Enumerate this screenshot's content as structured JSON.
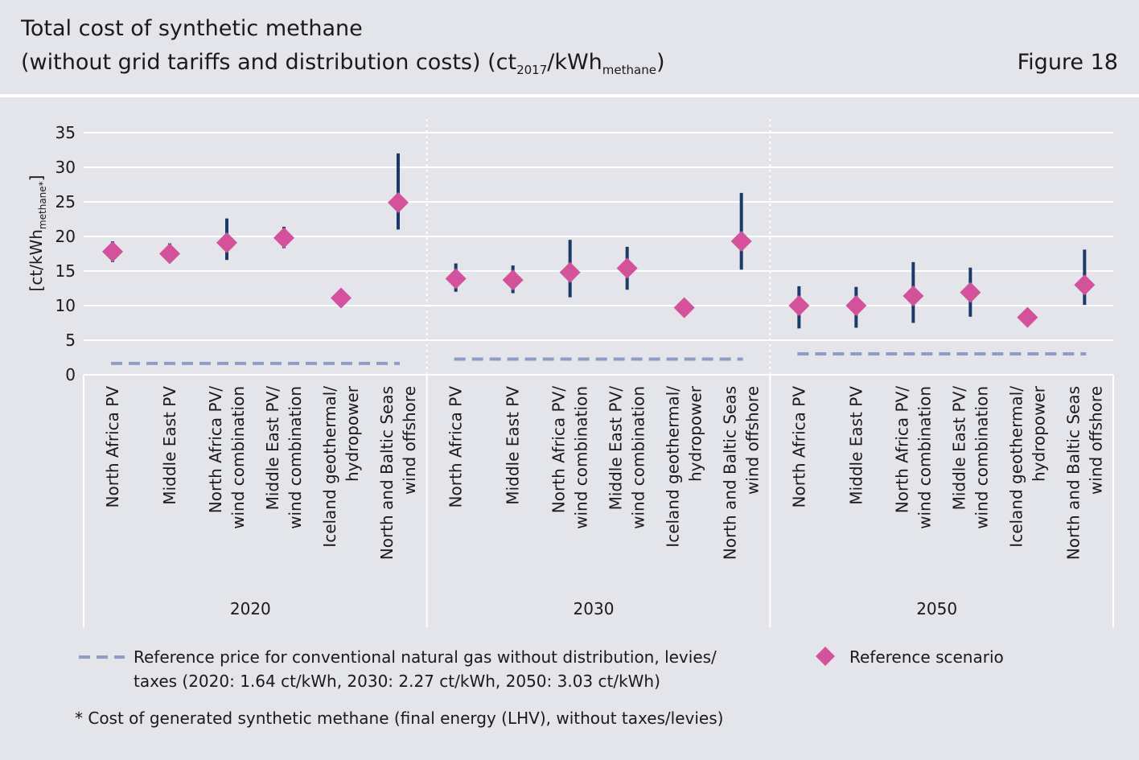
{
  "header": {
    "title_line1": "Total cost of synthetic methane",
    "title_line2_part1": "(without grid tariffs and distribution costs) (ct",
    "title_line2_sub1": "2017",
    "title_line2_part2": "/kWh",
    "title_line2_sub2": "methane",
    "title_line2_part3": ")",
    "figure_label": "Figure 18"
  },
  "chart_data": {
    "type": "scatter",
    "ylabel": "[ct/kWh",
    "ylabel_sub": "methane*",
    "ylabel_end": "]",
    "ylim": [
      0,
      35
    ],
    "yticks": [
      0,
      5,
      10,
      15,
      20,
      25,
      30,
      35
    ],
    "grid": true,
    "categories": [
      [
        "North Africa PV"
      ],
      [
        "Middle East PV"
      ],
      [
        "North Africa PV/",
        "wind combination"
      ],
      [
        "Middle East PV/",
        "wind combination"
      ],
      [
        "Iceland geothermal/",
        "hydropower"
      ],
      [
        "North and Baltic Seas",
        "wind offshore"
      ]
    ],
    "groups": [
      {
        "label": "2020",
        "reference_price": 1.64,
        "values": [
          17.8,
          17.5,
          19.1,
          19.8,
          11.1,
          24.9
        ],
        "low": [
          16.3,
          16.8,
          16.6,
          18.3,
          11.1,
          21.0
        ],
        "high": [
          19.3,
          19.0,
          22.6,
          21.4,
          11.1,
          32.0
        ]
      },
      {
        "label": "2030",
        "reference_price": 2.27,
        "values": [
          13.9,
          13.7,
          14.8,
          15.4,
          9.7,
          19.3
        ],
        "low": [
          12.0,
          11.8,
          11.2,
          12.3,
          9.7,
          15.2
        ],
        "high": [
          16.1,
          15.8,
          19.5,
          18.5,
          9.7,
          26.3
        ]
      },
      {
        "label": "2050",
        "reference_price": 3.03,
        "values": [
          10.0,
          10.0,
          11.4,
          11.9,
          8.3,
          13.0
        ],
        "low": [
          6.7,
          6.8,
          7.5,
          8.4,
          8.3,
          10.1
        ],
        "high": [
          12.8,
          12.7,
          16.3,
          15.5,
          8.3,
          18.1
        ]
      }
    ],
    "colors": {
      "diamond": "#d6519b",
      "error_bar": "#1a3a6b",
      "reference_line": "#8e9cc8",
      "grid": "#ffffff"
    },
    "legend": {
      "reference_line_text": [
        "Reference price for conventional natural gas without distribution, levies/",
        "taxes (2020: 1.64 ct/kWh, 2030: 2.27 ct/kWh, 2050: 3.03 ct/kWh)"
      ],
      "diamond_text": "Reference scenario"
    }
  },
  "footnote": "* Cost of generated synthetic methane (final energy (LHV), without taxes/levies)"
}
